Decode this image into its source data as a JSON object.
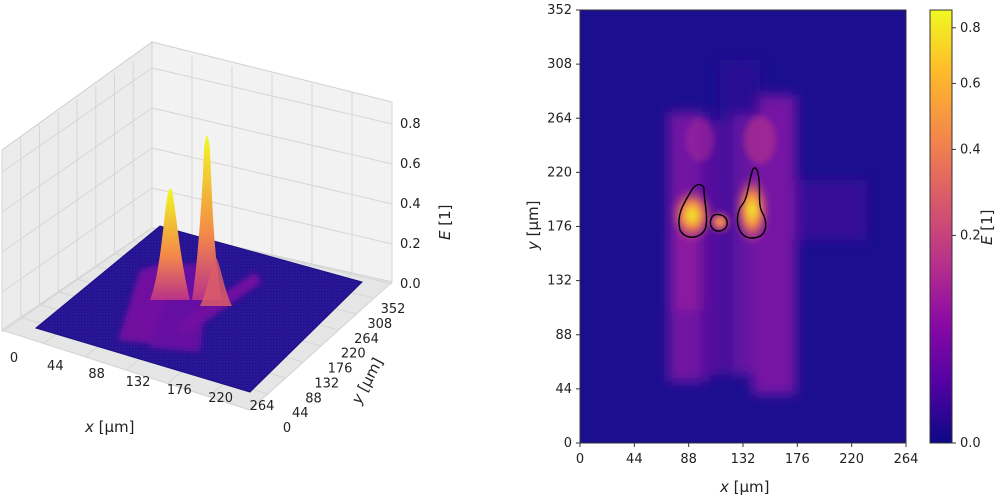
{
  "chart_data": [
    {
      "type": "surface3d",
      "x_ticks": [
        "0",
        "44",
        "88",
        "132",
        "176",
        "220",
        "264"
      ],
      "y_ticks": [
        "0",
        "44",
        "88",
        "132",
        "176",
        "220",
        "264",
        "308",
        "352"
      ],
      "z_ticks": [
        "0.0",
        "0.2",
        "0.4",
        "0.6",
        "0.8"
      ],
      "xlabel_var": "x",
      "xlabel_unit": " [μm]",
      "ylabel_var": "y",
      "ylabel_unit": " [μm]",
      "zlabel_var": "E",
      "zlabel_unit": " [1]",
      "xlim": [
        0,
        264
      ],
      "ylim": [
        0,
        352
      ],
      "zlim": [
        0,
        0.9
      ],
      "grid": true,
      "peaks": [
        {
          "x": 88,
          "y": 176,
          "E": 0.62
        },
        {
          "x": 132,
          "y": 176,
          "E": 0.86
        },
        {
          "x": 110,
          "y": 176,
          "E": 0.25
        }
      ]
    },
    {
      "type": "heatmap",
      "x_ticks": [
        "0",
        "44",
        "88",
        "132",
        "176",
        "220",
        "264"
      ],
      "y_ticks": [
        "0",
        "44",
        "88",
        "132",
        "176",
        "220",
        "264",
        "308",
        "352"
      ],
      "xlabel_var": "x",
      "xlabel_unit": " [μm]",
      "ylabel_var": "y",
      "ylabel_unit": " [μm]",
      "xlim": [
        0,
        264
      ],
      "ylim": [
        0,
        352
      ],
      "colorbar": {
        "label_var": "E",
        "label_unit": " [1]",
        "ticks": [
          "0.0",
          "0.2",
          "0.4",
          "0.6",
          "0.8"
        ],
        "range": [
          0,
          0.87
        ],
        "colormap": "plasma",
        "colors": [
          "#0d0887",
          "#5302a3",
          "#8b0aa5",
          "#b83289",
          "#db5c68",
          "#f48849",
          "#febc2a",
          "#f0f921"
        ]
      },
      "hotspots": [
        {
          "x": 88,
          "y": 180,
          "E": 0.62
        },
        {
          "x": 112,
          "y": 178,
          "E": 0.3
        },
        {
          "x": 138,
          "y": 180,
          "E": 0.86
        }
      ],
      "contours": [
        "high-intensity contour around x≈88, y≈176",
        "high-intensity contour around x≈132, y≈176"
      ]
    }
  ]
}
